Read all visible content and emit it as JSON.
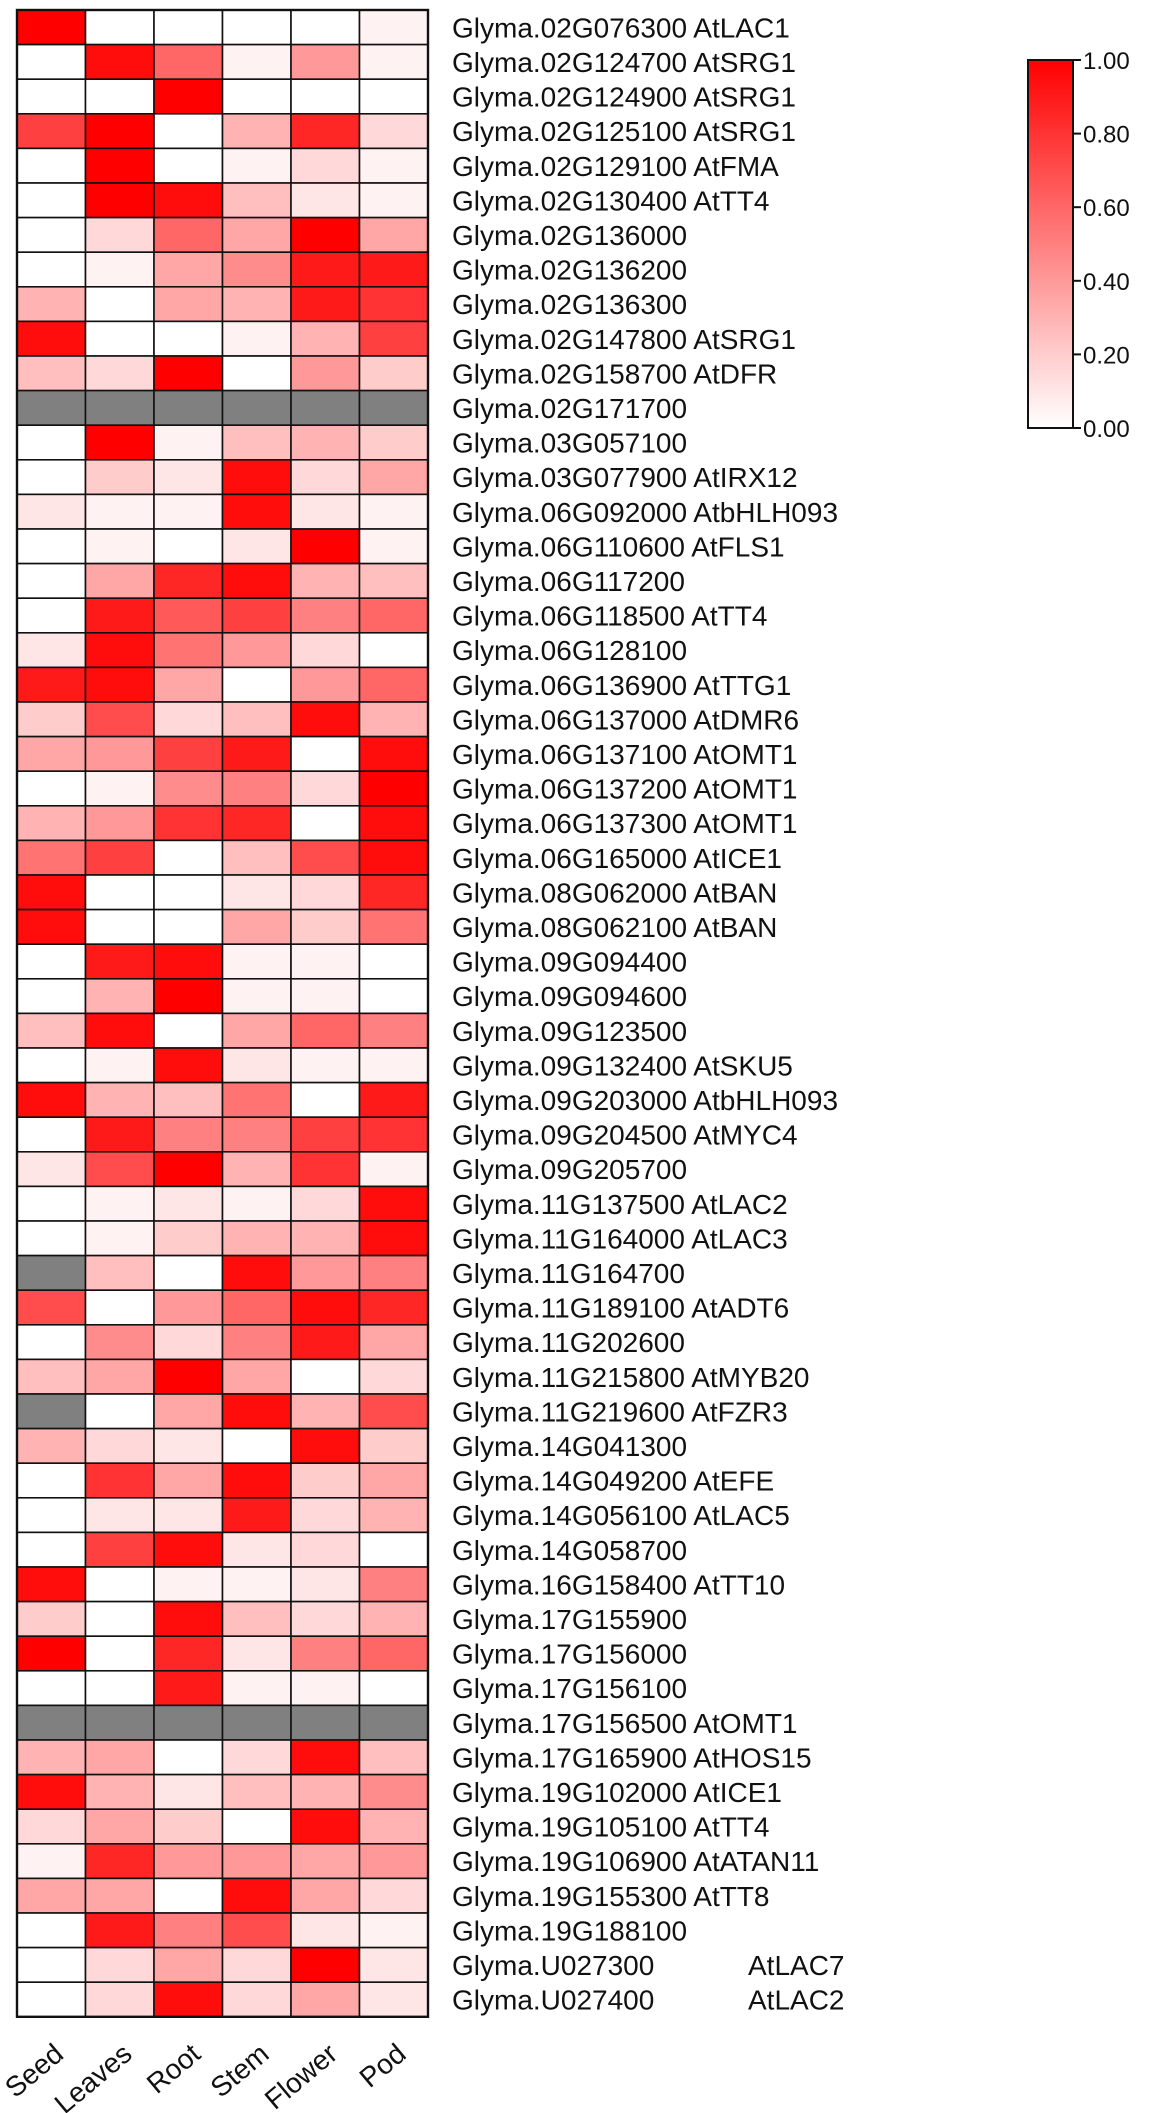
{
  "chart_data": {
    "type": "heatmap",
    "columns": [
      "Seed",
      "Leaves",
      "Root",
      "Stem",
      "Flower",
      "Pod"
    ],
    "rows": [
      {
        "gene": "Glyma.02G076300",
        "homolog": "AtLAC1",
        "values": [
          1.0,
          0.0,
          0.0,
          0.0,
          0.0,
          0.05
        ]
      },
      {
        "gene": "Glyma.02G124700",
        "homolog": "AtSRG1",
        "values": [
          0.0,
          0.95,
          0.6,
          0.05,
          0.4,
          0.05
        ]
      },
      {
        "gene": "Glyma.02G124900",
        "homolog": "AtSRG1",
        "values": [
          0.0,
          0.0,
          1.0,
          0.0,
          0.0,
          0.0
        ]
      },
      {
        "gene": "Glyma.02G125100",
        "homolog": "AtSRG1",
        "values": [
          0.75,
          1.0,
          0.0,
          0.3,
          0.85,
          0.15
        ]
      },
      {
        "gene": "Glyma.02G129100",
        "homolog": "AtFMA",
        "values": [
          0.0,
          1.0,
          0.0,
          0.05,
          0.15,
          0.05
        ]
      },
      {
        "gene": "Glyma.02G130400",
        "homolog": "AtTT4",
        "values": [
          0.0,
          1.0,
          0.95,
          0.25,
          0.1,
          0.05
        ]
      },
      {
        "gene": "Glyma.02G136000",
        "homolog": "",
        "values": [
          0.0,
          0.15,
          0.6,
          0.35,
          1.0,
          0.35
        ]
      },
      {
        "gene": "Glyma.02G136200",
        "homolog": "",
        "values": [
          0.0,
          0.05,
          0.35,
          0.45,
          0.9,
          0.9
        ]
      },
      {
        "gene": "Glyma.02G136300",
        "homolog": "",
        "values": [
          0.3,
          0.0,
          0.35,
          0.3,
          0.9,
          0.8
        ]
      },
      {
        "gene": "Glyma.02G147800",
        "homolog": "AtSRG1",
        "values": [
          0.95,
          0.0,
          0.0,
          0.05,
          0.3,
          0.75
        ]
      },
      {
        "gene": "Glyma.02G158700",
        "homolog": "AtDFR",
        "values": [
          0.25,
          0.15,
          1.0,
          0.0,
          0.4,
          0.2
        ]
      },
      {
        "gene": "Glyma.02G171700",
        "homolog": "",
        "values": [
          null,
          null,
          null,
          null,
          null,
          null
        ]
      },
      {
        "gene": "Glyma.03G057100",
        "homolog": "",
        "values": [
          0.0,
          1.0,
          0.05,
          0.25,
          0.3,
          0.2
        ]
      },
      {
        "gene": "Glyma.03G077900",
        "homolog": "AtIRX12",
        "values": [
          0.0,
          0.2,
          0.1,
          0.95,
          0.15,
          0.35
        ]
      },
      {
        "gene": "Glyma.06G092000",
        "homolog": "AtbHLH093",
        "values": [
          0.1,
          0.05,
          0.05,
          0.95,
          0.1,
          0.05
        ]
      },
      {
        "gene": "Glyma.06G110600",
        "homolog": "AtFLS1",
        "values": [
          0.0,
          0.05,
          0.0,
          0.1,
          1.0,
          0.05
        ]
      },
      {
        "gene": "Glyma.06G117200",
        "homolog": "",
        "values": [
          0.0,
          0.35,
          0.85,
          0.95,
          0.3,
          0.25
        ]
      },
      {
        "gene": "Glyma.06G118500",
        "homolog": "AtTT4",
        "values": [
          0.0,
          0.9,
          0.65,
          0.75,
          0.5,
          0.6
        ]
      },
      {
        "gene": "Glyma.06G128100",
        "homolog": "",
        "values": [
          0.1,
          0.95,
          0.55,
          0.4,
          0.15,
          0.0
        ]
      },
      {
        "gene": "Glyma.06G136900",
        "homolog": "AtTTG1",
        "values": [
          0.9,
          0.95,
          0.35,
          0.0,
          0.4,
          0.6
        ]
      },
      {
        "gene": "Glyma.06G137000",
        "homolog": "AtDMR6",
        "values": [
          0.2,
          0.7,
          0.15,
          0.25,
          0.95,
          0.3
        ]
      },
      {
        "gene": "Glyma.06G137100",
        "homolog": "AtOMT1",
        "values": [
          0.35,
          0.4,
          0.75,
          0.9,
          0.0,
          0.95
        ]
      },
      {
        "gene": "Glyma.06G137200",
        "homolog": "AtOMT1",
        "values": [
          0.0,
          0.05,
          0.45,
          0.5,
          0.15,
          1.0
        ]
      },
      {
        "gene": "Glyma.06G137300",
        "homolog": "AtOMT1",
        "values": [
          0.3,
          0.4,
          0.8,
          0.85,
          0.0,
          0.95
        ]
      },
      {
        "gene": "Glyma.06G165000",
        "homolog": "AtICE1",
        "values": [
          0.55,
          0.75,
          0.0,
          0.25,
          0.7,
          0.95
        ]
      },
      {
        "gene": "Glyma.08G062000",
        "homolog": "AtBAN",
        "values": [
          0.95,
          0.0,
          0.0,
          0.1,
          0.15,
          0.85
        ]
      },
      {
        "gene": "Glyma.08G062100",
        "homolog": "AtBAN",
        "values": [
          0.95,
          0.0,
          0.0,
          0.35,
          0.2,
          0.55
        ]
      },
      {
        "gene": "Glyma.09G094400",
        "homolog": "",
        "values": [
          0.0,
          0.9,
          0.95,
          0.05,
          0.05,
          0.0
        ]
      },
      {
        "gene": "Glyma.09G094600",
        "homolog": "",
        "values": [
          0.0,
          0.3,
          1.0,
          0.05,
          0.05,
          0.0
        ]
      },
      {
        "gene": "Glyma.09G123500",
        "homolog": "",
        "values": [
          0.25,
          0.95,
          0.0,
          0.35,
          0.6,
          0.5
        ]
      },
      {
        "gene": "Glyma.09G132400",
        "homolog": "AtSKU5",
        "values": [
          0.0,
          0.05,
          0.95,
          0.1,
          0.05,
          0.05
        ]
      },
      {
        "gene": "Glyma.09G203000",
        "homolog": "AtbHLH093",
        "values": [
          0.95,
          0.3,
          0.25,
          0.55,
          0.0,
          0.9
        ]
      },
      {
        "gene": "Glyma.09G204500",
        "homolog": "AtMYC4",
        "values": [
          0.0,
          0.9,
          0.5,
          0.5,
          0.75,
          0.8
        ]
      },
      {
        "gene": "Glyma.09G205700",
        "homolog": "",
        "values": [
          0.1,
          0.7,
          1.0,
          0.3,
          0.8,
          0.05
        ]
      },
      {
        "gene": "Glyma.11G137500",
        "homolog": "AtLAC2",
        "values": [
          0.0,
          0.05,
          0.1,
          0.05,
          0.15,
          0.95
        ]
      },
      {
        "gene": "Glyma.11G164000",
        "homolog": "AtLAC3",
        "values": [
          0.0,
          0.05,
          0.2,
          0.3,
          0.3,
          0.95
        ]
      },
      {
        "gene": "Glyma.11G164700",
        "homolog": "",
        "values": [
          null,
          0.25,
          0.0,
          0.95,
          0.4,
          0.5
        ]
      },
      {
        "gene": "Glyma.11G189100",
        "homolog": "AtADT6",
        "values": [
          0.7,
          0.0,
          0.4,
          0.6,
          0.95,
          0.85
        ]
      },
      {
        "gene": "Glyma.11G202600",
        "homolog": "",
        "values": [
          0.0,
          0.45,
          0.15,
          0.5,
          0.9,
          0.35
        ]
      },
      {
        "gene": "Glyma.11G215800",
        "homolog": "AtMYB20",
        "values": [
          0.25,
          0.35,
          1.0,
          0.35,
          0.0,
          0.15
        ]
      },
      {
        "gene": "Glyma.11G219600",
        "homolog": "AtFZR3",
        "values": [
          null,
          0.0,
          0.35,
          0.95,
          0.3,
          0.7
        ]
      },
      {
        "gene": "Glyma.14G041300",
        "homolog": "",
        "values": [
          0.3,
          0.15,
          0.1,
          0.0,
          0.95,
          0.2
        ]
      },
      {
        "gene": "Glyma.14G049200",
        "homolog": "AtEFE",
        "values": [
          0.0,
          0.8,
          0.35,
          0.95,
          0.2,
          0.35
        ]
      },
      {
        "gene": "Glyma.14G056100",
        "homolog": "AtLAC5",
        "values": [
          0.0,
          0.1,
          0.1,
          0.9,
          0.15,
          0.3
        ]
      },
      {
        "gene": "Glyma.14G058700",
        "homolog": "",
        "values": [
          0.0,
          0.75,
          0.95,
          0.1,
          0.15,
          0.0
        ]
      },
      {
        "gene": "Glyma.16G158400",
        "homolog": "AtTT10",
        "values": [
          0.95,
          0.0,
          0.05,
          0.05,
          0.1,
          0.5
        ]
      },
      {
        "gene": "Glyma.17G155900",
        "homolog": "",
        "values": [
          0.2,
          0.0,
          0.95,
          0.25,
          0.15,
          0.3
        ]
      },
      {
        "gene": "Glyma.17G156000",
        "homolog": "",
        "values": [
          1.0,
          0.0,
          0.85,
          0.1,
          0.5,
          0.6
        ]
      },
      {
        "gene": "Glyma.17G156100",
        "homolog": "",
        "values": [
          0.0,
          0.0,
          0.9,
          0.05,
          0.05,
          0.0
        ]
      },
      {
        "gene": "Glyma.17G156500",
        "homolog": "AtOMT1",
        "values": [
          null,
          null,
          null,
          null,
          null,
          null
        ]
      },
      {
        "gene": "Glyma.17G165900",
        "homolog": "AtHOS15",
        "values": [
          0.3,
          0.35,
          0.0,
          0.15,
          0.95,
          0.25
        ]
      },
      {
        "gene": "Glyma.19G102000",
        "homolog": "AtICE1",
        "values": [
          0.95,
          0.3,
          0.1,
          0.25,
          0.3,
          0.45
        ]
      },
      {
        "gene": "Glyma.19G105100",
        "homolog": "AtTT4",
        "values": [
          0.15,
          0.35,
          0.2,
          0.0,
          0.95,
          0.3
        ]
      },
      {
        "gene": "Glyma.19G106900",
        "homolog": "AtATAN11",
        "values": [
          0.05,
          0.85,
          0.4,
          0.4,
          0.35,
          0.4
        ]
      },
      {
        "gene": "Glyma.19G155300",
        "homolog": "AtTT8",
        "values": [
          0.35,
          0.35,
          0.0,
          0.95,
          0.35,
          0.15
        ]
      },
      {
        "gene": "Glyma.19G188100",
        "homolog": "",
        "values": [
          0.0,
          0.9,
          0.5,
          0.7,
          0.1,
          0.05
        ]
      },
      {
        "gene": "Glyma.U027300",
        "homolog": "AtLAC7",
        "values": [
          0.0,
          0.15,
          0.35,
          0.15,
          1.0,
          0.1
        ]
      },
      {
        "gene": "Glyma.U027400",
        "homolog": "AtLAC2",
        "values": [
          0.0,
          0.15,
          0.95,
          0.15,
          0.35,
          0.1
        ]
      }
    ],
    "color_scale": {
      "min": 0.0,
      "max": 1.0,
      "min_color": "#ffffff",
      "max_color": "#ff0000",
      "missing_color": "#808080",
      "ticks": [
        "1.00",
        "0.80",
        "0.60",
        "0.40",
        "0.20",
        "0.00"
      ]
    },
    "legend_placement": "top-right"
  }
}
